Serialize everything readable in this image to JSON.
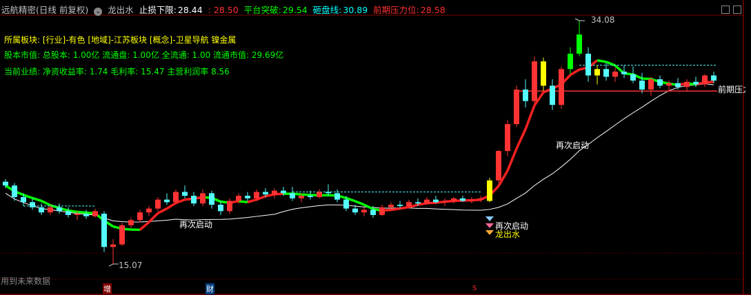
{
  "header": {
    "indicator_name": "远航精密(日线 前复权)",
    "formula_name": "龙出水",
    "stop_loss_label": "止损下限:",
    "stop_loss_value": "28.44",
    "stop_loss_value2": ": 28.50",
    "platform_break_label": "平台突破:",
    "platform_break_value": "29.54",
    "smash_line_label": "砸盘线:",
    "smash_line_value": "30.89",
    "pressure_label": "前期压力位:",
    "pressure_value": "28.58"
  },
  "info": {
    "sector": "所属板块: [行业]-有色 [地域]-江苏板块 [概念]-卫星导航 镍金属",
    "capital": "股本市值: 总股本: 1.00亿 流通盘: 1.00亿 全流通: 1.00 流通市值: 29.69亿",
    "performance": "当前业绩: 净资收益率: 1.74 毛利率: 15.47 主营利润率 8.56"
  },
  "annotations": {
    "high_label": "34.08",
    "low_label": "15.07",
    "restart_1": "再次启动",
    "restart_2": "再次启动",
    "restart_3": "再次启动",
    "dragon": "龙出水",
    "pressure_right": "前期压力",
    "future_data": "用到未来数据",
    "marker_zeng": "增",
    "marker_cai": "财",
    "marker_s": "S"
  },
  "colors": {
    "up": "#ff3333",
    "down": "#54fcfc",
    "ma_up": "#ff2020",
    "ma_down": "#00ff00",
    "yellow": "#ffff00",
    "pressure": "#ff3030"
  },
  "chart_data": {
    "type": "candlestick",
    "ylim": [
      14.5,
      34.6
    ],
    "pressure_level": 28.58,
    "candles": [
      [
        21.5,
        21.7,
        21.0,
        21.2
      ],
      [
        21.2,
        21.4,
        20.0,
        20.3
      ],
      [
        20.3,
        20.6,
        19.6,
        19.9
      ],
      [
        19.9,
        20.2,
        19.3,
        19.5
      ],
      [
        19.5,
        19.8,
        18.9,
        19.1
      ],
      [
        19.1,
        19.7,
        18.9,
        19.5
      ],
      [
        19.5,
        19.8,
        19.0,
        19.2
      ],
      [
        19.2,
        19.5,
        18.7,
        18.9
      ],
      [
        18.9,
        19.2,
        18.5,
        19.0
      ],
      [
        19.0,
        19.3,
        18.6,
        18.8
      ],
      [
        18.8,
        19.4,
        18.7,
        19.2
      ],
      [
        19.0,
        19.2,
        16.0,
        16.4
      ],
      [
        16.4,
        17.0,
        15.07,
        16.6
      ],
      [
        16.6,
        18.3,
        16.5,
        18.1
      ],
      [
        18.1,
        18.7,
        17.9,
        18.5
      ],
      [
        18.5,
        19.3,
        18.3,
        19.1
      ],
      [
        19.1,
        19.6,
        18.8,
        19.4
      ],
      [
        19.4,
        20.3,
        19.2,
        20.1
      ],
      [
        20.1,
        20.6,
        19.7,
        19.9
      ],
      [
        19.9,
        20.9,
        19.8,
        20.7
      ],
      [
        20.7,
        21.2,
        20.2,
        20.4
      ],
      [
        20.4,
        20.7,
        19.6,
        19.8
      ],
      [
        19.8,
        20.9,
        19.6,
        20.6
      ],
      [
        20.6,
        20.8,
        19.4,
        19.7
      ],
      [
        19.7,
        20.0,
        18.9,
        19.2
      ],
      [
        19.2,
        20.2,
        19.0,
        20.0
      ],
      [
        20.0,
        20.6,
        19.8,
        20.4
      ],
      [
        20.4,
        20.7,
        20.0,
        20.2
      ],
      [
        20.2,
        20.9,
        20.0,
        20.7
      ],
      [
        20.7,
        21.0,
        20.3,
        20.5
      ],
      [
        20.5,
        21.0,
        20.2,
        20.8
      ],
      [
        20.8,
        21.1,
        20.4,
        20.6
      ],
      [
        20.6,
        21.1,
        20.0,
        20.2
      ],
      [
        20.2,
        20.6,
        19.9,
        20.4
      ],
      [
        20.4,
        20.8,
        20.1,
        20.3
      ],
      [
        20.3,
        20.9,
        20.2,
        20.7
      ],
      [
        20.7,
        21.3,
        20.4,
        20.6
      ],
      [
        20.6,
        20.9,
        19.9,
        20.1
      ],
      [
        20.1,
        20.4,
        19.2,
        19.4
      ],
      [
        19.4,
        19.7,
        18.9,
        19.1
      ],
      [
        19.1,
        19.5,
        18.8,
        19.3
      ],
      [
        19.3,
        19.6,
        18.7,
        18.9
      ],
      [
        18.9,
        19.7,
        18.8,
        19.5
      ],
      [
        19.5,
        19.9,
        19.2,
        19.7
      ],
      [
        19.7,
        20.0,
        19.4,
        19.6
      ],
      [
        19.6,
        20.1,
        19.5,
        19.9
      ],
      [
        19.9,
        20.2,
        19.6,
        19.8
      ],
      [
        19.8,
        20.3,
        19.7,
        20.1
      ],
      [
        20.1,
        20.4,
        19.8,
        19.9
      ],
      [
        19.9,
        20.2,
        19.6,
        20.0
      ],
      [
        20.0,
        20.3,
        19.8,
        20.2
      ],
      [
        20.2,
        20.4,
        19.9,
        20.0
      ],
      [
        20.0,
        20.3,
        19.8,
        20.1
      ],
      [
        20.1,
        20.4,
        19.9,
        20.2
      ],
      [
        20.0,
        21.8,
        19.9,
        21.6
      ],
      [
        21.6,
        24.0,
        21.4,
        23.9
      ],
      [
        23.9,
        26.3,
        23.5,
        26.0
      ],
      [
        26.0,
        29.0,
        25.8,
        28.7
      ],
      [
        28.7,
        29.5,
        27.3,
        27.8
      ],
      [
        27.8,
        31.3,
        27.6,
        30.9
      ],
      [
        30.9,
        31.2,
        28.6,
        29.0
      ],
      [
        29.0,
        29.5,
        27.1,
        27.5
      ],
      [
        27.5,
        30.5,
        27.2,
        30.3
      ],
      [
        30.3,
        32.0,
        29.9,
        31.5
      ],
      [
        31.5,
        34.08,
        31.3,
        33.0
      ],
      [
        31.5,
        32.0,
        29.3,
        29.8
      ],
      [
        29.8,
        30.6,
        29.1,
        30.3
      ],
      [
        30.3,
        30.8,
        29.4,
        29.7
      ],
      [
        29.7,
        30.4,
        29.3,
        30.1
      ],
      [
        30.1,
        30.6,
        29.6,
        29.9
      ],
      [
        29.9,
        30.5,
        29.2,
        29.4
      ],
      [
        29.4,
        30.0,
        28.4,
        28.7
      ],
      [
        28.7,
        29.7,
        28.2,
        29.5
      ],
      [
        29.5,
        29.8,
        28.8,
        29.0
      ],
      [
        29.0,
        29.4,
        28.6,
        29.2
      ],
      [
        29.2,
        29.6,
        28.7,
        28.9
      ],
      [
        28.9,
        29.5,
        28.6,
        29.3
      ],
      [
        29.3,
        29.7,
        28.9,
        29.1
      ],
      [
        29.1,
        29.9,
        28.9,
        29.8
      ],
      [
        29.8,
        30.1,
        29.2,
        29.4
      ]
    ]
  }
}
